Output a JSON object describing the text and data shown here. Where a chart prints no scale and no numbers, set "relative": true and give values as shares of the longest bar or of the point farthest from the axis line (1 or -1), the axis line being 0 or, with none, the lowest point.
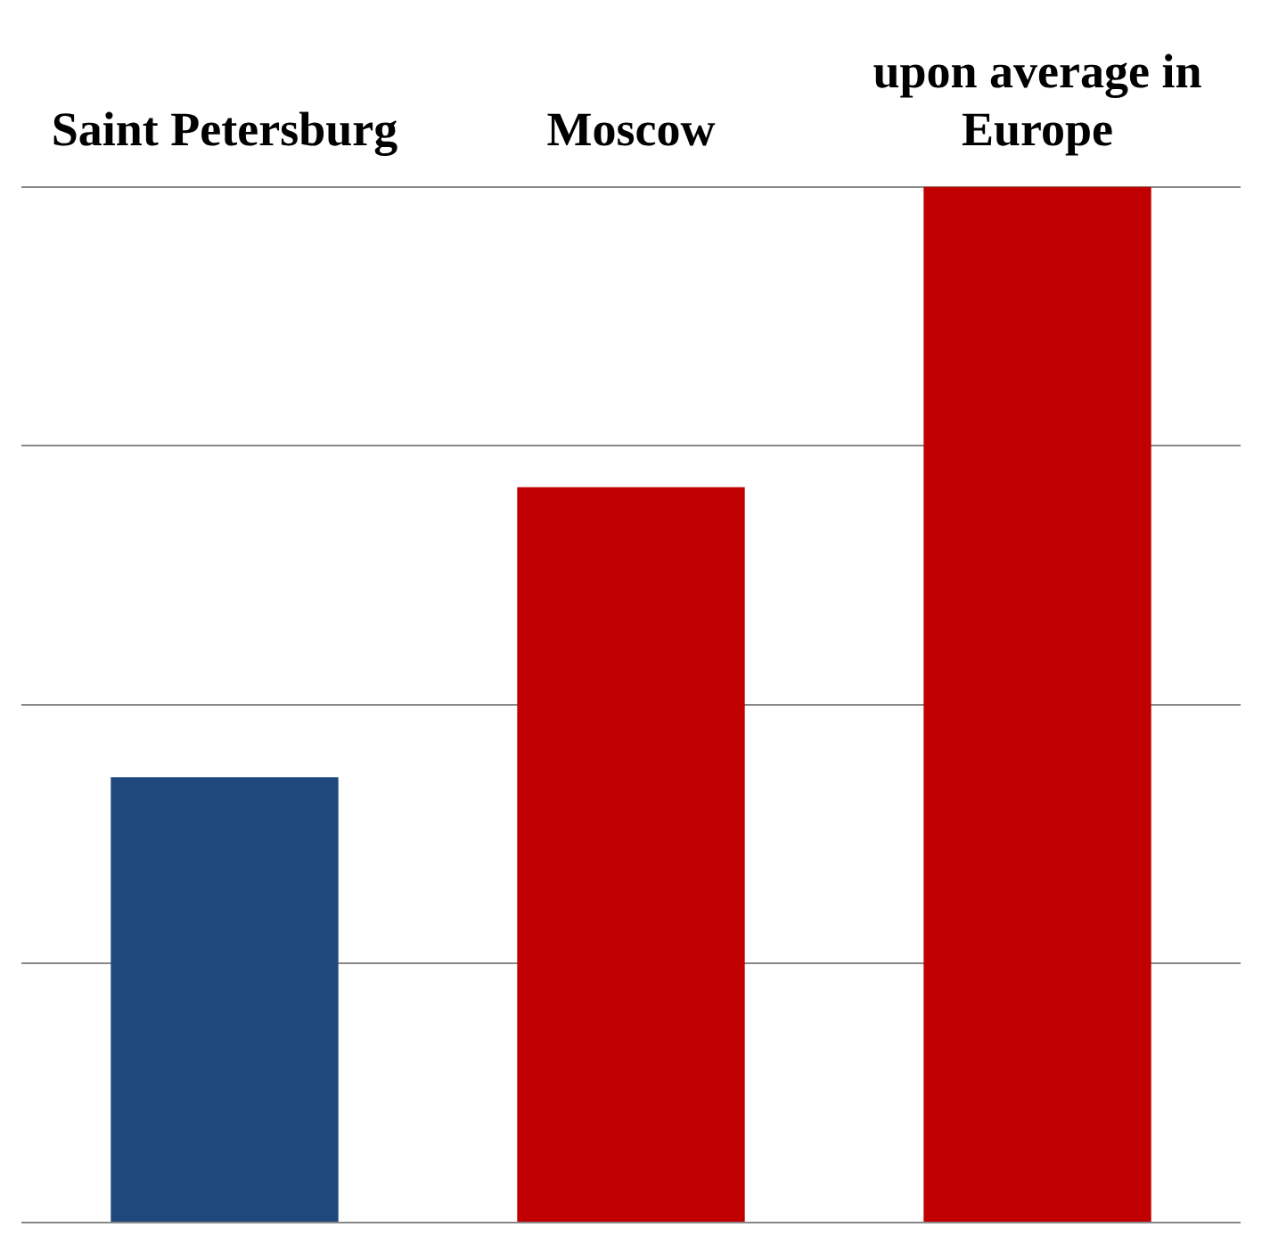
{
  "chart_data": {
    "type": "bar",
    "relative": true,
    "categories": [
      "Saint Petersburg",
      "Moscow",
      "upon average in Europe"
    ],
    "values": [
      0.43,
      0.71,
      1
    ],
    "colors": [
      "#1f497d",
      "#c00000",
      "#c00000"
    ],
    "grid": "y",
    "legend": false
  }
}
